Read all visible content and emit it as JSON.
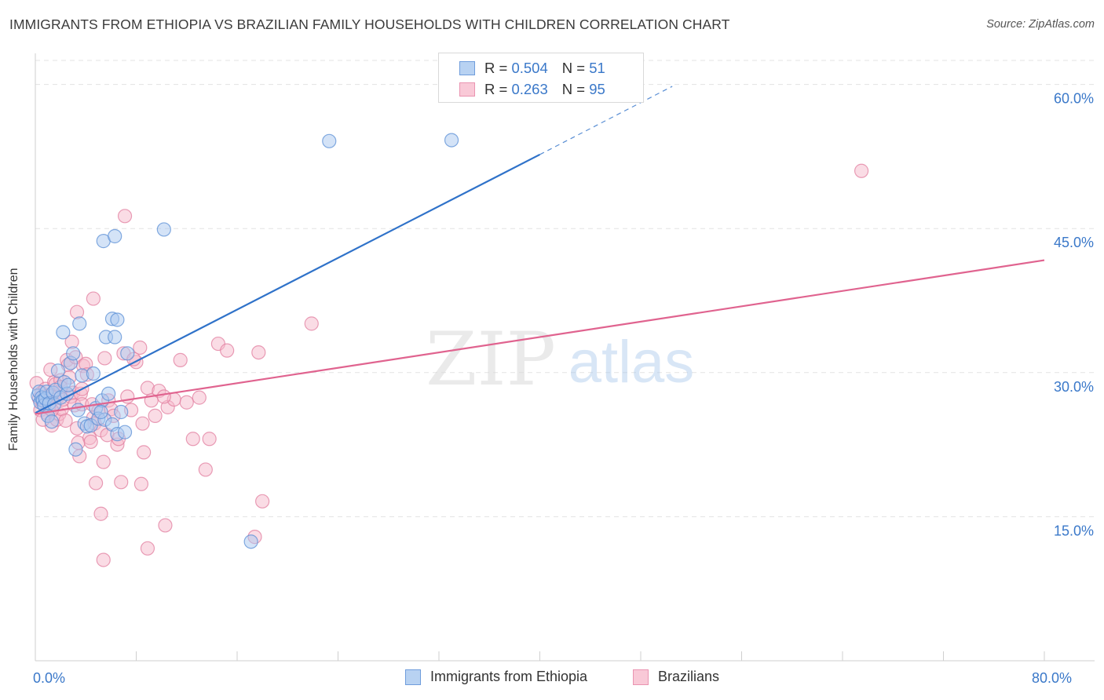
{
  "title": "IMMIGRANTS FROM ETHIOPIA VS BRAZILIAN FAMILY HOUSEHOLDS WITH CHILDREN CORRELATION CHART",
  "source": "Source: ZipAtlas.com",
  "watermark": {
    "zip": "ZIP",
    "atlas": "atlas"
  },
  "legend_top": [
    {
      "r_label": "R =",
      "r_value": "0.504",
      "n_label": "N =",
      "n_value": "51"
    },
    {
      "r_label": "R =",
      "r_value": "0.263",
      "n_label": "N =",
      "n_value": "95"
    }
  ],
  "legend_bottom": [
    "Immigrants from Ethiopia",
    "Brazilians"
  ],
  "colors": {
    "blue_fill": "#a9c8f0",
    "blue_stroke": "#5b8fd6",
    "blue_line": "#2f72c9",
    "pink_fill": "#f6b9cc",
    "pink_stroke": "#e27d9f",
    "pink_line": "#e0638f",
    "tick_text": "#3a78c9",
    "grid": "#e3e3e3"
  },
  "chart_data": {
    "type": "scatter",
    "title": "IMMIGRANTS FROM ETHIOPIA VS BRAZILIAN FAMILY HOUSEHOLDS WITH CHILDREN CORRELATION CHART",
    "xlabel": "",
    "ylabel": "Family Households with Children",
    "xlim": [
      0,
      80
    ],
    "ylim": [
      0,
      62.5
    ],
    "x_tick_labels": [
      {
        "value": 0,
        "label": "0.0%"
      },
      {
        "value": 80,
        "label": "80.0%"
      }
    ],
    "y_tick_labels": [
      {
        "value": 15,
        "label": "15.0%"
      },
      {
        "value": 30,
        "label": "30.0%"
      },
      {
        "value": 45,
        "label": "45.0%"
      },
      {
        "value": 60,
        "label": "60.0%"
      }
    ],
    "series": [
      {
        "name": "Immigrants from Ethiopia",
        "r": 0.504,
        "n": 51,
        "trend": {
          "x0": 0,
          "y0": 25.8,
          "x1": 40,
          "y1": 52.7,
          "dash_x1": 50.5,
          "dash_y1": 59.8
        },
        "points": [
          [
            0.2,
            27.6
          ],
          [
            0.3,
            28.0
          ],
          [
            0.4,
            26.9
          ],
          [
            0.5,
            27.4
          ],
          [
            0.6,
            27.1
          ],
          [
            0.7,
            26.6
          ],
          [
            0.8,
            27.3
          ],
          [
            0.9,
            28.0
          ],
          [
            1.0,
            25.5
          ],
          [
            1.1,
            26.8
          ],
          [
            1.3,
            24.9
          ],
          [
            1.4,
            27.9
          ],
          [
            1.5,
            26.7
          ],
          [
            1.6,
            28.2
          ],
          [
            1.8,
            30.2
          ],
          [
            2.0,
            27.4
          ],
          [
            2.2,
            34.2
          ],
          [
            2.3,
            29.0
          ],
          [
            2.5,
            27.8
          ],
          [
            2.6,
            28.7
          ],
          [
            2.8,
            31.0
          ],
          [
            3.0,
            32.0
          ],
          [
            3.2,
            22.0
          ],
          [
            3.4,
            26.1
          ],
          [
            3.5,
            35.1
          ],
          [
            3.7,
            29.7
          ],
          [
            3.9,
            24.7
          ],
          [
            4.1,
            24.4
          ],
          [
            4.4,
            24.5
          ],
          [
            4.6,
            29.9
          ],
          [
            4.8,
            26.3
          ],
          [
            5.0,
            25.2
          ],
          [
            5.3,
            27.1
          ],
          [
            5.5,
            25.1
          ],
          [
            5.8,
            27.8
          ],
          [
            6.1,
            24.6
          ],
          [
            5.2,
            25.9
          ],
          [
            5.6,
            33.7
          ],
          [
            6.1,
            35.6
          ],
          [
            6.3,
            33.7
          ],
          [
            6.5,
            35.5
          ],
          [
            6.5,
            23.6
          ],
          [
            6.8,
            25.9
          ],
          [
            7.1,
            23.8
          ],
          [
            7.3,
            32.0
          ],
          [
            5.4,
            43.7
          ],
          [
            6.3,
            44.2
          ],
          [
            10.2,
            44.9
          ],
          [
            17.1,
            12.4
          ],
          [
            23.3,
            54.1
          ],
          [
            33.0,
            54.2
          ]
        ]
      },
      {
        "name": "Brazilians",
        "r": 0.263,
        "n": 95,
        "trend": {
          "x0": 0,
          "y0": 25.7,
          "x1": 80,
          "y1": 41.7
        },
        "points": [
          [
            0.1,
            28.9
          ],
          [
            0.3,
            27.3
          ],
          [
            0.4,
            26.1
          ],
          [
            0.5,
            27.9
          ],
          [
            0.6,
            26.8
          ],
          [
            0.7,
            27.4
          ],
          [
            0.8,
            28.3
          ],
          [
            0.9,
            25.8
          ],
          [
            1.0,
            27.6
          ],
          [
            1.1,
            26.4
          ],
          [
            1.2,
            30.3
          ],
          [
            1.3,
            24.5
          ],
          [
            1.4,
            27.6
          ],
          [
            1.5,
            29.0
          ],
          [
            1.6,
            28.8
          ],
          [
            1.7,
            25.1
          ],
          [
            1.8,
            27.5
          ],
          [
            1.9,
            25.7
          ],
          [
            2.0,
            29.2
          ],
          [
            2.1,
            26.2
          ],
          [
            2.2,
            27.2
          ],
          [
            2.4,
            25.0
          ],
          [
            2.5,
            31.3
          ],
          [
            2.6,
            30.8
          ],
          [
            2.7,
            29.5
          ],
          [
            2.8,
            27.5
          ],
          [
            3.0,
            27.9
          ],
          [
            3.1,
            26.6
          ],
          [
            3.2,
            31.6
          ],
          [
            3.3,
            24.2
          ],
          [
            3.4,
            22.7
          ],
          [
            3.5,
            21.3
          ],
          [
            3.6,
            27.8
          ],
          [
            3.7,
            26.7
          ],
          [
            3.8,
            30.7
          ],
          [
            4.0,
            30.9
          ],
          [
            4.1,
            29.8
          ],
          [
            4.3,
            23.2
          ],
          [
            4.4,
            22.8
          ],
          [
            4.5,
            26.7
          ],
          [
            4.6,
            25.3
          ],
          [
            4.7,
            24.7
          ],
          [
            4.8,
            18.5
          ],
          [
            5.0,
            26.0
          ],
          [
            5.2,
            24.0
          ],
          [
            5.5,
            31.5
          ],
          [
            5.7,
            23.5
          ],
          [
            5.8,
            27.1
          ],
          [
            6.0,
            26.2
          ],
          [
            6.2,
            25.5
          ],
          [
            6.5,
            22.5
          ],
          [
            6.8,
            18.6
          ],
          [
            7.0,
            32.0
          ],
          [
            7.3,
            27.5
          ],
          [
            7.6,
            26.1
          ],
          [
            8.0,
            31.1
          ],
          [
            8.3,
            32.6
          ],
          [
            8.5,
            24.7
          ],
          [
            8.9,
            28.4
          ],
          [
            9.2,
            27.1
          ],
          [
            9.5,
            25.5
          ],
          [
            9.8,
            28.1
          ],
          [
            10.3,
            14.1
          ],
          [
            10.5,
            26.4
          ],
          [
            11.0,
            27.2
          ],
          [
            11.5,
            31.3
          ],
          [
            12.0,
            26.9
          ],
          [
            12.5,
            23.1
          ],
          [
            13.0,
            27.4
          ],
          [
            13.5,
            19.9
          ],
          [
            14.5,
            33.0
          ],
          [
            15.2,
            32.3
          ],
          [
            18.0,
            16.6
          ],
          [
            21.9,
            35.1
          ],
          [
            65.5,
            51.0
          ],
          [
            3.3,
            36.3
          ],
          [
            4.6,
            37.7
          ],
          [
            7.1,
            46.3
          ],
          [
            2.9,
            33.2
          ],
          [
            3.7,
            28.3
          ],
          [
            5.4,
            20.7
          ],
          [
            5.2,
            15.3
          ],
          [
            5.4,
            10.5
          ],
          [
            8.9,
            11.7
          ],
          [
            8.6,
            21.7
          ],
          [
            8.4,
            18.4
          ],
          [
            13.8,
            23.1
          ],
          [
            17.4,
            12.9
          ],
          [
            17.7,
            32.1
          ],
          [
            10.2,
            27.5
          ],
          [
            7.8,
            31.4
          ],
          [
            6.6,
            23.1
          ],
          [
            2.0,
            28.5
          ],
          [
            0.6,
            25.1
          ],
          [
            1.3,
            26.1
          ]
        ]
      }
    ]
  }
}
